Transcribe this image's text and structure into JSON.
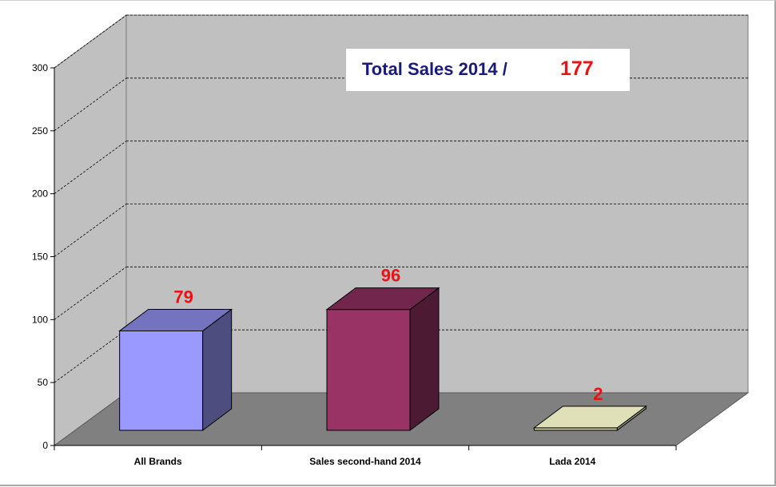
{
  "chart_data": {
    "type": "bar",
    "categories": [
      "All Brands",
      "Sales second-hand 2014",
      "Lada 2014"
    ],
    "values": [
      79,
      96,
      2
    ],
    "data_labels": [
      "79",
      "96",
      "2"
    ],
    "ylim": [
      0,
      300
    ],
    "yticks": [
      "0",
      "50",
      "100",
      "150",
      "200",
      "250",
      "300"
    ],
    "grid": true,
    "style": "3d",
    "colors": {
      "bars": [
        "#9999ff",
        "#993366",
        "#c8c89a"
      ],
      "bar_sides": [
        "#4d4d80",
        "#4d1a33",
        "#8a8a66"
      ],
      "bar_tops": [
        "#7373c0",
        "#73264d",
        "#e0e0b8"
      ],
      "back_wall": "#c0c0c0",
      "floor": "#808080",
      "data_label": "#ee1111"
    }
  },
  "annotation": {
    "label": "Total Sales 2014 /",
    "value": "177",
    "label_color": "#1a1a7a",
    "value_color": "#ee1111"
  }
}
